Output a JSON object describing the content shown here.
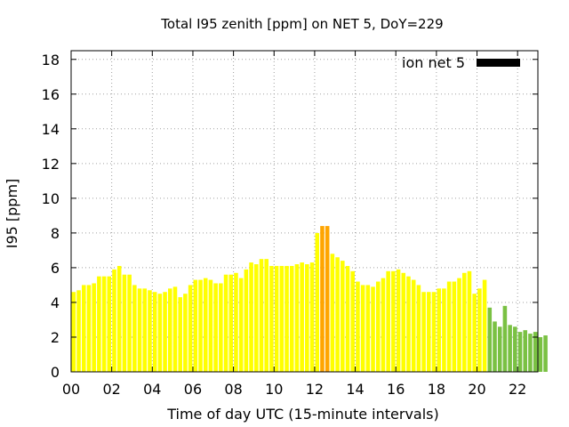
{
  "chart_data": {
    "type": "bar",
    "title": "Total I95 zenith [ppm] on NET 5, DoY=229",
    "xlabel": "Time of day UTC (15-minute intervals)",
    "ylabel": "I95 [ppm]",
    "xlim": [
      0,
      23
    ],
    "ylim": [
      0,
      18.5
    ],
    "bin_hours": 0.25,
    "grid": true,
    "legend_position": "top-right",
    "xticks": [
      "00",
      "02",
      "04",
      "06",
      "08",
      "10",
      "12",
      "14",
      "16",
      "18",
      "20",
      "22"
    ],
    "xtick_values": [
      0,
      2,
      4,
      6,
      8,
      10,
      12,
      14,
      16,
      18,
      20,
      22
    ],
    "yticks": [
      "0",
      "2",
      "4",
      "6",
      "8",
      "10",
      "12",
      "14",
      "16",
      "18"
    ],
    "ytick_values": [
      0,
      2,
      4,
      6,
      8,
      10,
      12,
      14,
      16,
      18
    ],
    "legend": [
      {
        "label": "ion net 5",
        "color": "#000000"
      }
    ],
    "series": [
      {
        "name": "ion net 5",
        "values": [
          4.6,
          4.7,
          5.0,
          5.0,
          5.1,
          5.5,
          5.5,
          5.5,
          5.9,
          6.1,
          5.6,
          5.6,
          5.0,
          4.8,
          4.8,
          4.7,
          4.6,
          4.5,
          4.6,
          4.8,
          4.9,
          4.3,
          4.5,
          5.0,
          5.3,
          5.3,
          5.4,
          5.3,
          5.1,
          5.1,
          5.6,
          5.6,
          5.7,
          5.4,
          5.9,
          6.3,
          6.2,
          6.5,
          6.5,
          6.1,
          6.1,
          6.1,
          6.1,
          6.1,
          6.2,
          6.3,
          6.2,
          6.3,
          8.0,
          8.4,
          8.4,
          6.8,
          6.6,
          6.4,
          6.1,
          5.8,
          5.2,
          5.0,
          5.0,
          4.9,
          5.2,
          5.4,
          5.8,
          5.8,
          5.9,
          5.7,
          5.5,
          5.3,
          5.0,
          4.6,
          4.6,
          4.6,
          4.8,
          4.8,
          5.2,
          5.2,
          5.4,
          5.7,
          5.8,
          4.5,
          4.8,
          5.3,
          3.7,
          2.9,
          2.6,
          3.8,
          2.7,
          2.6,
          2.3,
          2.4,
          2.2,
          2.3,
          2.0,
          2.1
        ],
        "colors": [
          "#ffff00",
          "#ffff00",
          "#ffff00",
          "#ffff00",
          "#ffff00",
          "#ffff00",
          "#ffff00",
          "#ffff00",
          "#ffff00",
          "#ffff00",
          "#ffff00",
          "#ffff00",
          "#ffff00",
          "#ffff00",
          "#ffff00",
          "#ffff00",
          "#ffff00",
          "#ffff00",
          "#ffff00",
          "#ffff00",
          "#ffff00",
          "#ffff00",
          "#ffff00",
          "#ffff00",
          "#ffff00",
          "#ffff00",
          "#ffff00",
          "#ffff00",
          "#ffff00",
          "#ffff00",
          "#ffff00",
          "#ffff00",
          "#ffff00",
          "#ffff00",
          "#ffff00",
          "#ffff00",
          "#ffff00",
          "#ffff00",
          "#ffff00",
          "#ffff00",
          "#ffff00",
          "#ffff00",
          "#ffff00",
          "#ffff00",
          "#ffff00",
          "#ffff00",
          "#ffff00",
          "#ffff00",
          "#ffff00",
          "#ffa500",
          "#ffa500",
          "#ffff00",
          "#ffff00",
          "#ffff00",
          "#ffff00",
          "#ffff00",
          "#ffff00",
          "#ffff00",
          "#ffff00",
          "#ffff00",
          "#ffff00",
          "#ffff00",
          "#ffff00",
          "#ffff00",
          "#ffff00",
          "#ffff00",
          "#ffff00",
          "#ffff00",
          "#ffff00",
          "#ffff00",
          "#ffff00",
          "#ffff00",
          "#ffff00",
          "#ffff00",
          "#ffff00",
          "#ffff00",
          "#ffff00",
          "#ffff00",
          "#ffff00",
          "#ffff00",
          "#ffff00",
          "#ffff00",
          "#7ac143",
          "#7ac143",
          "#7ac143",
          "#7ac143",
          "#7ac143",
          "#7ac143",
          "#7ac143",
          "#7ac143",
          "#7ac143",
          "#7ac143",
          "#7ac143",
          "#7ac143"
        ]
      }
    ]
  }
}
